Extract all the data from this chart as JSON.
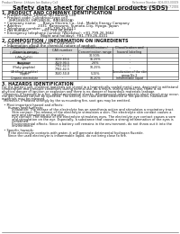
{
  "header_left": "Product Name: Lithium Ion Battery Cell",
  "header_right": "Reference Number: SDS-003-00019\nEstablished / Revision: Dec.7.2016",
  "title": "Safety data sheet for chemical products (SDS)",
  "section1_title": "1. PRODUCT AND COMPANY IDENTIFICATION",
  "section1_lines": [
    "  • Product name: Lithium Ion Battery Cell",
    "  • Product code: Cylindrical-type cell",
    "      (IHR18650U, IHR18650L, IHR18650A)",
    "  • Company name:      Banyu Electric Co., Ltd., Mobile Energy Company",
    "  • Address:              2031  Kannazumi, Sumoto-City, Hyogo, Japan",
    "  • Telephone number:   +81-799-26-4111",
    "  • Fax number:           +81-799-26-4120",
    "  • Emergency telephone number (Weekday): +81-799-26-3662",
    "                                  (Night and holiday): +81-799-26-4101"
  ],
  "section2_title": "2. COMPOSITION / INFORMATION ON INGREDIENTS",
  "section2_intro": "  • Substance or preparation: Preparation",
  "section2_sub": "  • Information about the chemical nature of product:",
  "table_headers": [
    "Common name /\nGeneric name",
    "CAS number",
    "Concentration /\nConcentration range",
    "Classification and\nhazard labeling"
  ],
  "table_col_headers2": [
    "",
    "",
    "(30-50%)",
    ""
  ],
  "table_rows": [
    [
      "Lithium cobalt oxide\n(LiMn-CoO2)",
      "-",
      "30-50%",
      "-"
    ],
    [
      "Iron",
      "7439-89-6",
      "15-25%",
      "-"
    ],
    [
      "Aluminum",
      "7429-90-5",
      "2-6%",
      "-"
    ],
    [
      "Graphite\n(Flaky graphite)\n(Artificial graphite)",
      "7782-42-5\n7782-42-5",
      "10-25%",
      "-"
    ],
    [
      "Copper",
      "7440-50-8",
      "5-15%",
      "Sensitization of the skin\ngroup No.2"
    ],
    [
      "Organic electrolyte",
      "-",
      "10-20%",
      "Inflammable liquid"
    ]
  ],
  "section3_title": "3. HAZARDS IDENTIFICATION",
  "section3_text": [
    "For the battery cell, chemical materials are stored in a hermetically sealed metal case, designed to withstand",
    "temperature and pressure conditions during normal use. As a result, during normal use, there is no",
    "physical danger of ignition or explosion and there is no danger of hazardous materials leakage.",
    "  However, if exposed to a fire, added mechanical shocks, decomposed, when electric short-circuit may occur,",
    "the gas releases cannot be operated. The battery cell case will be breached of fire-particles, hazardous",
    "materials may be released.",
    "  Moreover, if heated strongly by the surrounding fire, soot gas may be emitted.",
    "",
    "  • Most important hazard and effects:",
    "      Human health effects:",
    "          Inhalation: The release of the electrolyte has an anesthesia action and stimulates a respiratory tract.",
    "          Skin contact: The release of the electrolyte stimulates a skin. The electrolyte skin contact causes a",
    "          sore and stimulation on the skin.",
    "          Eye contact: The release of the electrolyte stimulates eyes. The electrolyte eye contact causes a sore",
    "          and stimulation on the eye. Especially, a substance that causes a strong inflammation of the eyes is",
    "          contained.",
    "          Environmental effects: Since a battery cell remains in the environment, do not throw out it into the",
    "          environment.",
    "",
    "  • Specific hazards:",
    "      If the electrolyte contacts with water, it will generate detrimental hydrogen fluoride.",
    "      Since the used electrolyte is inflammable liquid, do not bring close to fire."
  ],
  "bg_color": "#ffffff",
  "text_color": "#111111",
  "table_header_bg": "#d8d8d8"
}
